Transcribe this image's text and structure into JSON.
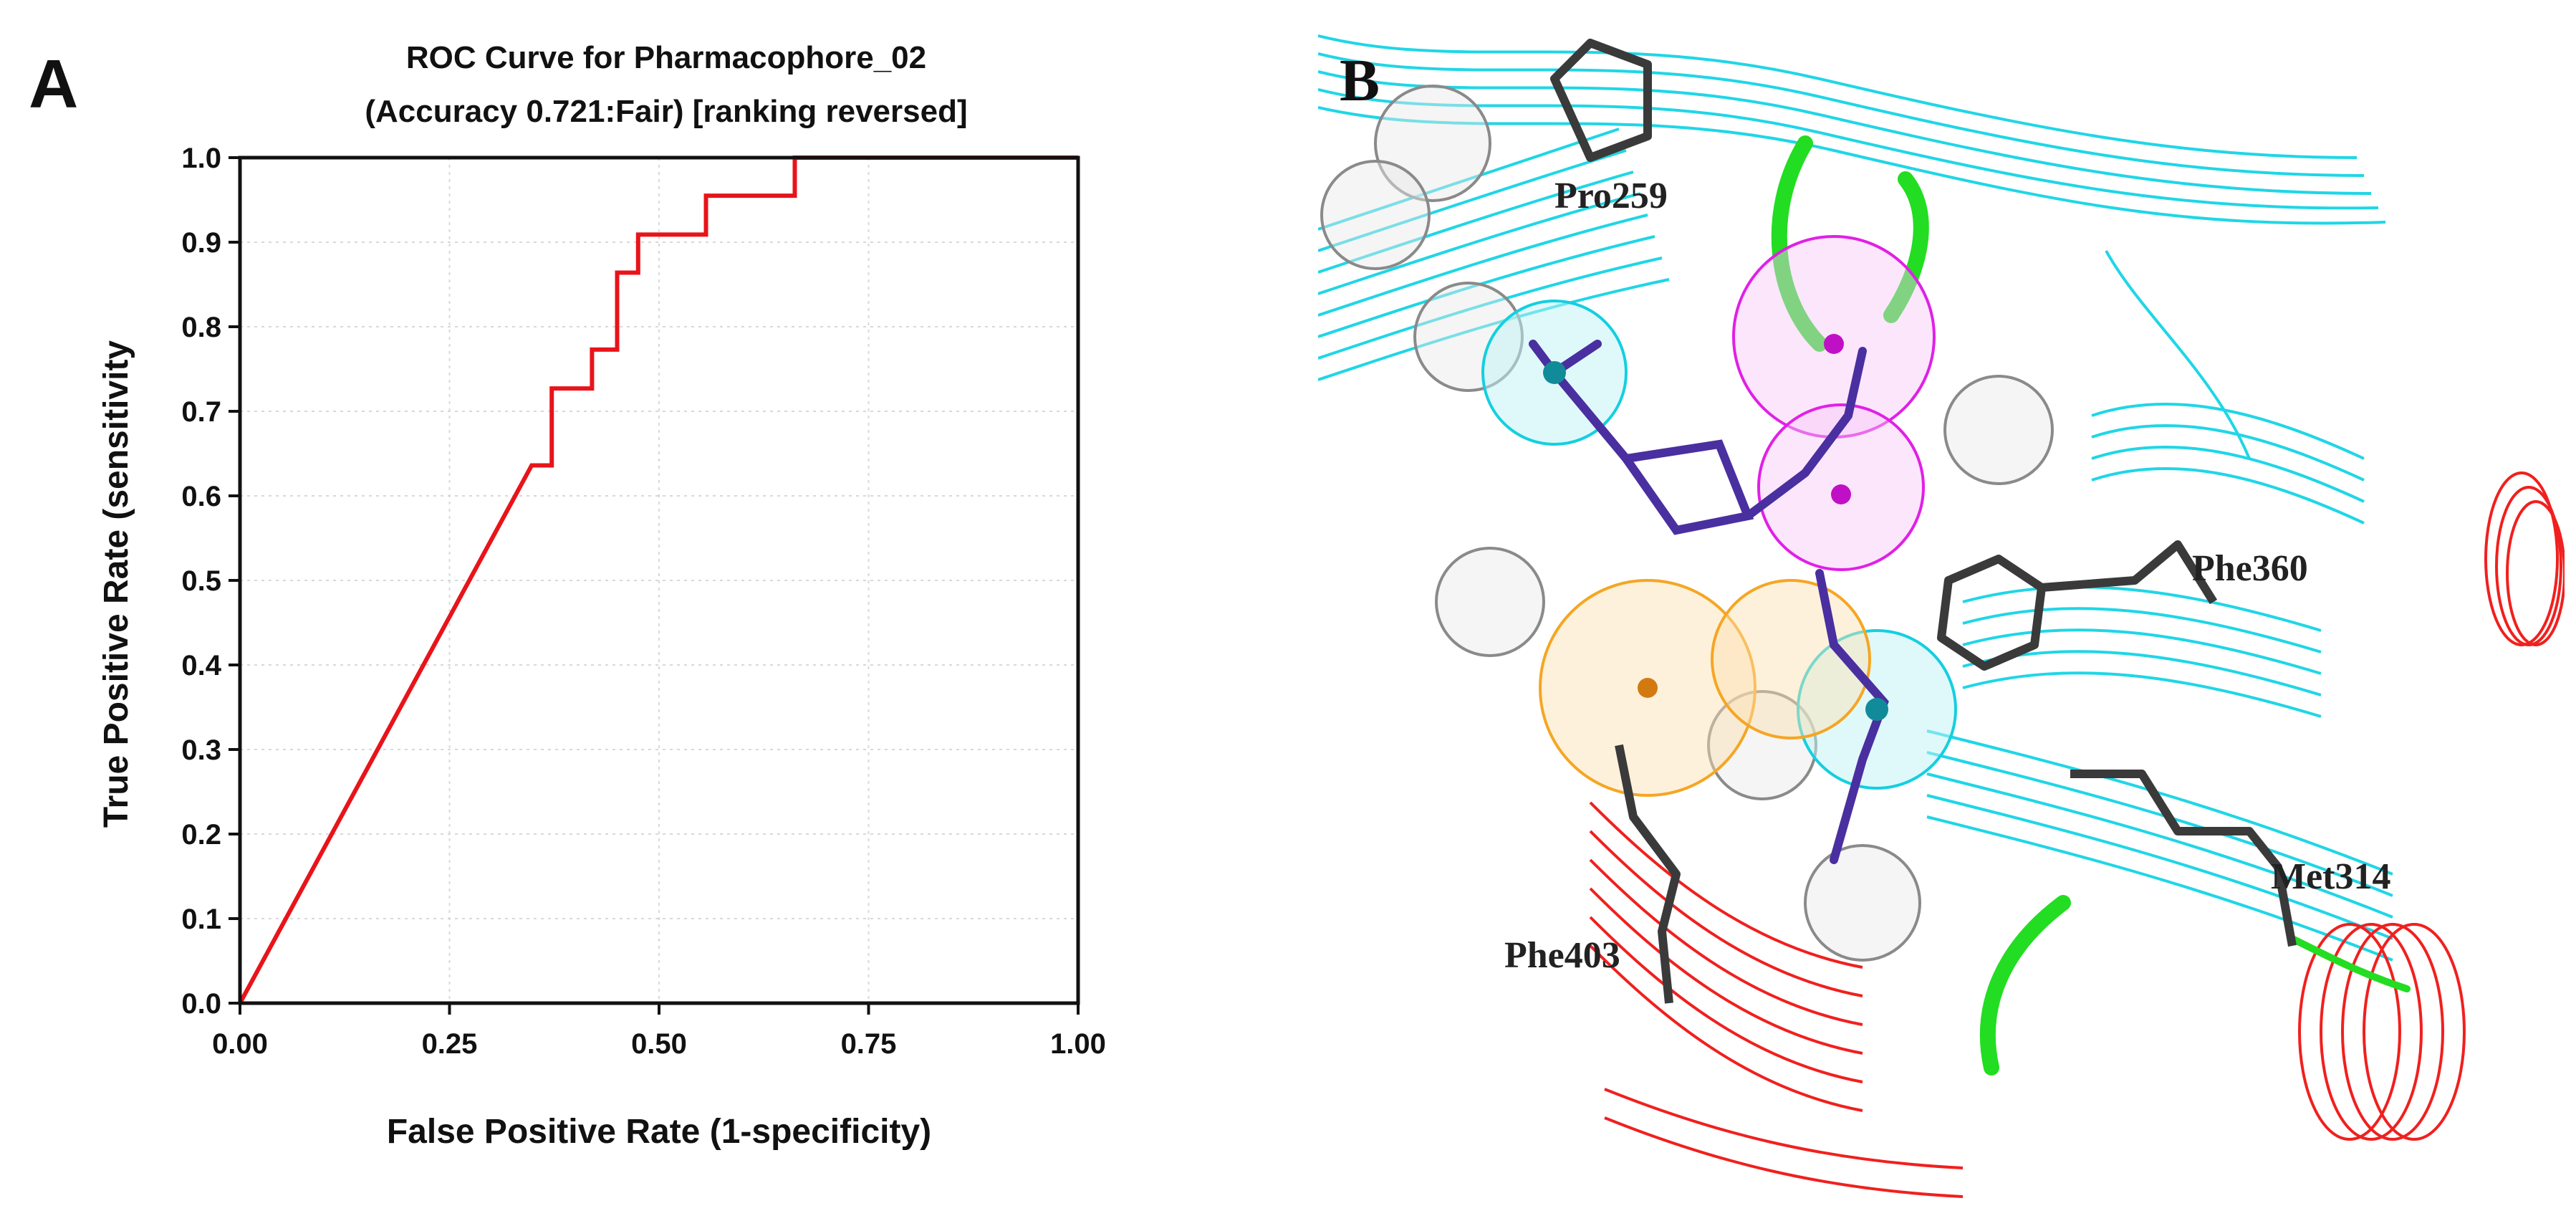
{
  "panel_a_label": "A",
  "panel_b_label": "B",
  "chart_data": {
    "type": "line",
    "title": "ROC Curve for Pharmacophore_02",
    "subtitle": "(Accuracy 0.721:Fair) [ranking reversed]",
    "xlabel": "False Positive Rate (1-specificity)",
    "ylabel": "True Positive Rate (sensitivity",
    "xlim": [
      0,
      1
    ],
    "ylim": [
      0,
      1
    ],
    "x_ticks": [
      "0.00",
      "0.25",
      "0.50",
      "0.75",
      "1.00"
    ],
    "y_ticks": [
      "0.0",
      "0.1",
      "0.2",
      "0.3",
      "0.4",
      "0.5",
      "0.6",
      "0.7",
      "0.8",
      "0.9",
      "1.0"
    ],
    "grid": true,
    "series": [
      {
        "name": "ROC",
        "color": "#e8141a",
        "x": [
          0.0,
          0.348,
          0.372,
          0.372,
          0.42,
          0.42,
          0.45,
          0.45,
          0.475,
          0.475,
          0.556,
          0.556,
          0.662,
          0.662,
          1.0
        ],
        "y": [
          0.0,
          0.636,
          0.636,
          0.727,
          0.727,
          0.773,
          0.773,
          0.864,
          0.864,
          0.909,
          0.909,
          0.955,
          0.955,
          1.0,
          1.0
        ]
      }
    ]
  },
  "docking": {
    "residues": [
      "Pro259",
      "Phe360",
      "Met314",
      "Phe403"
    ],
    "colors": {
      "ribbon_blue": "#1fd6e6",
      "ribbon_red": "#f0201e",
      "turn_green": "#22dd22",
      "feature_magenta": "#e020e6",
      "feature_orange": "#f5a623",
      "feature_cyan": "#14cfe0",
      "feature_grey": "#8a8a8a",
      "ligand": "#4a2fa0",
      "residue_stick": "#3a3a3a"
    }
  }
}
